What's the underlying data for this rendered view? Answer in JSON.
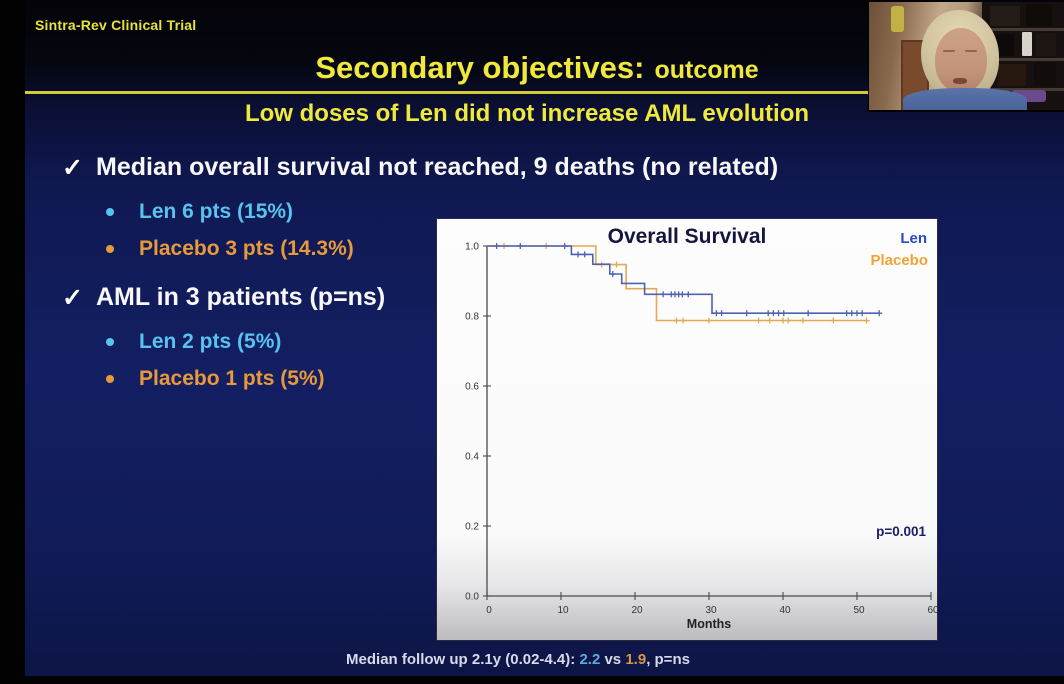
{
  "icons": {
    "checkmark": "✓"
  },
  "colors": {
    "accent_yellow": "#f0e93c",
    "len_cyan": "#57c3ef",
    "placebo_orange": "#e8993c",
    "km_len_line": "#4d62b2",
    "km_placebo_line": "#e2aa55",
    "legend_len": "#2b4bc4",
    "legend_placebo": "#f0a436"
  },
  "slide": {
    "eyebrow": "Sintra-Rev Clinical Trial",
    "title_main": "Secondary objectives:",
    "title_suffix": "outcome",
    "subtitle": "Low doses of Len did not increase AML evolution",
    "bullets": [
      {
        "text": "Median overall survival not reached, 9 deaths (no related)",
        "sub": [
          {
            "label": "Len 6 pts (15%)"
          },
          {
            "label": "Placebo 3 pts (14.3%)"
          }
        ]
      },
      {
        "text": "AML in 3 patients (p=ns)",
        "sub": [
          {
            "label": "Len 2 pts (5%)"
          },
          {
            "label": "Placebo 1 pts (5%)"
          }
        ]
      }
    ],
    "footer": {
      "prefix": "Median follow up 2.1y (0.02-4.4): ",
      "len_value": "2.2",
      "mid": " vs ",
      "placebo_value": "1.9",
      "suffix": ", p=ns"
    }
  },
  "chart_data": {
    "type": "line",
    "subtype": "kaplan-meier",
    "title": "Overall Survival",
    "xlabel": "Months",
    "ylabel": "",
    "xlim": [
      0,
      60
    ],
    "ylim": [
      0.0,
      1.0
    ],
    "x_ticks": [
      0,
      10,
      20,
      30,
      40,
      50,
      60
    ],
    "y_ticks": [
      "0.0",
      "0.2",
      "0.4",
      "0.6",
      "0.8",
      "1.0"
    ],
    "grid": false,
    "legend_position": "top-right",
    "annotation": "p=0.001",
    "legend": [
      {
        "name": "Len",
        "color": "#2b4bc4"
      },
      {
        "name": "Placebo",
        "color": "#f0a436"
      }
    ],
    "series": [
      {
        "name": "Len",
        "color": "#4d62b2",
        "steps": [
          [
            0,
            1.0
          ],
          [
            11.4,
            1.0
          ],
          [
            11.4,
            0.976
          ],
          [
            14.3,
            0.976
          ],
          [
            14.3,
            0.948
          ],
          [
            16.6,
            0.948
          ],
          [
            16.6,
            0.92
          ],
          [
            18.2,
            0.92
          ],
          [
            18.2,
            0.893
          ],
          [
            21.3,
            0.893
          ],
          [
            21.3,
            0.862
          ],
          [
            30.4,
            0.862
          ],
          [
            30.4,
            0.808
          ],
          [
            53,
            0.808
          ]
        ],
        "censors": [
          [
            1.3,
            1.0
          ],
          [
            4.5,
            1.0
          ],
          [
            10.5,
            1.0
          ],
          [
            12.3,
            0.976
          ],
          [
            13.2,
            0.976
          ],
          [
            17,
            0.92
          ],
          [
            23.8,
            0.862
          ],
          [
            24.9,
            0.862
          ],
          [
            25.4,
            0.862
          ],
          [
            25.9,
            0.862
          ],
          [
            26.4,
            0.862
          ],
          [
            27.2,
            0.862
          ],
          [
            31,
            0.808
          ],
          [
            31.7,
            0.808
          ],
          [
            35.1,
            0.808
          ],
          [
            38,
            0.808
          ],
          [
            38.7,
            0.808
          ],
          [
            39.4,
            0.808
          ],
          [
            40.1,
            0.808
          ],
          [
            43.4,
            0.808
          ],
          [
            48.6,
            0.808
          ],
          [
            49.3,
            0.808
          ],
          [
            50,
            0.808
          ],
          [
            50.7,
            0.808
          ],
          [
            53,
            0.808
          ]
        ]
      },
      {
        "name": "Placebo",
        "color": "#e2aa55",
        "steps": [
          [
            0,
            1.0
          ],
          [
            14.7,
            1.0
          ],
          [
            14.7,
            0.947
          ],
          [
            18.8,
            0.947
          ],
          [
            18.8,
            0.878
          ],
          [
            22.9,
            0.878
          ],
          [
            22.9,
            0.787
          ],
          [
            51.3,
            0.787
          ]
        ],
        "censors": [
          [
            2.3,
            1.0
          ],
          [
            8,
            1.0
          ],
          [
            15.5,
            0.947
          ],
          [
            17.5,
            0.947
          ],
          [
            25.6,
            0.787
          ],
          [
            26.5,
            0.787
          ],
          [
            30,
            0.787
          ],
          [
            36.7,
            0.787
          ],
          [
            38.2,
            0.787
          ],
          [
            40,
            0.787
          ],
          [
            40.7,
            0.787
          ],
          [
            42.7,
            0.787
          ],
          [
            46.8,
            0.787
          ],
          [
            51.3,
            0.787
          ]
        ]
      }
    ]
  }
}
